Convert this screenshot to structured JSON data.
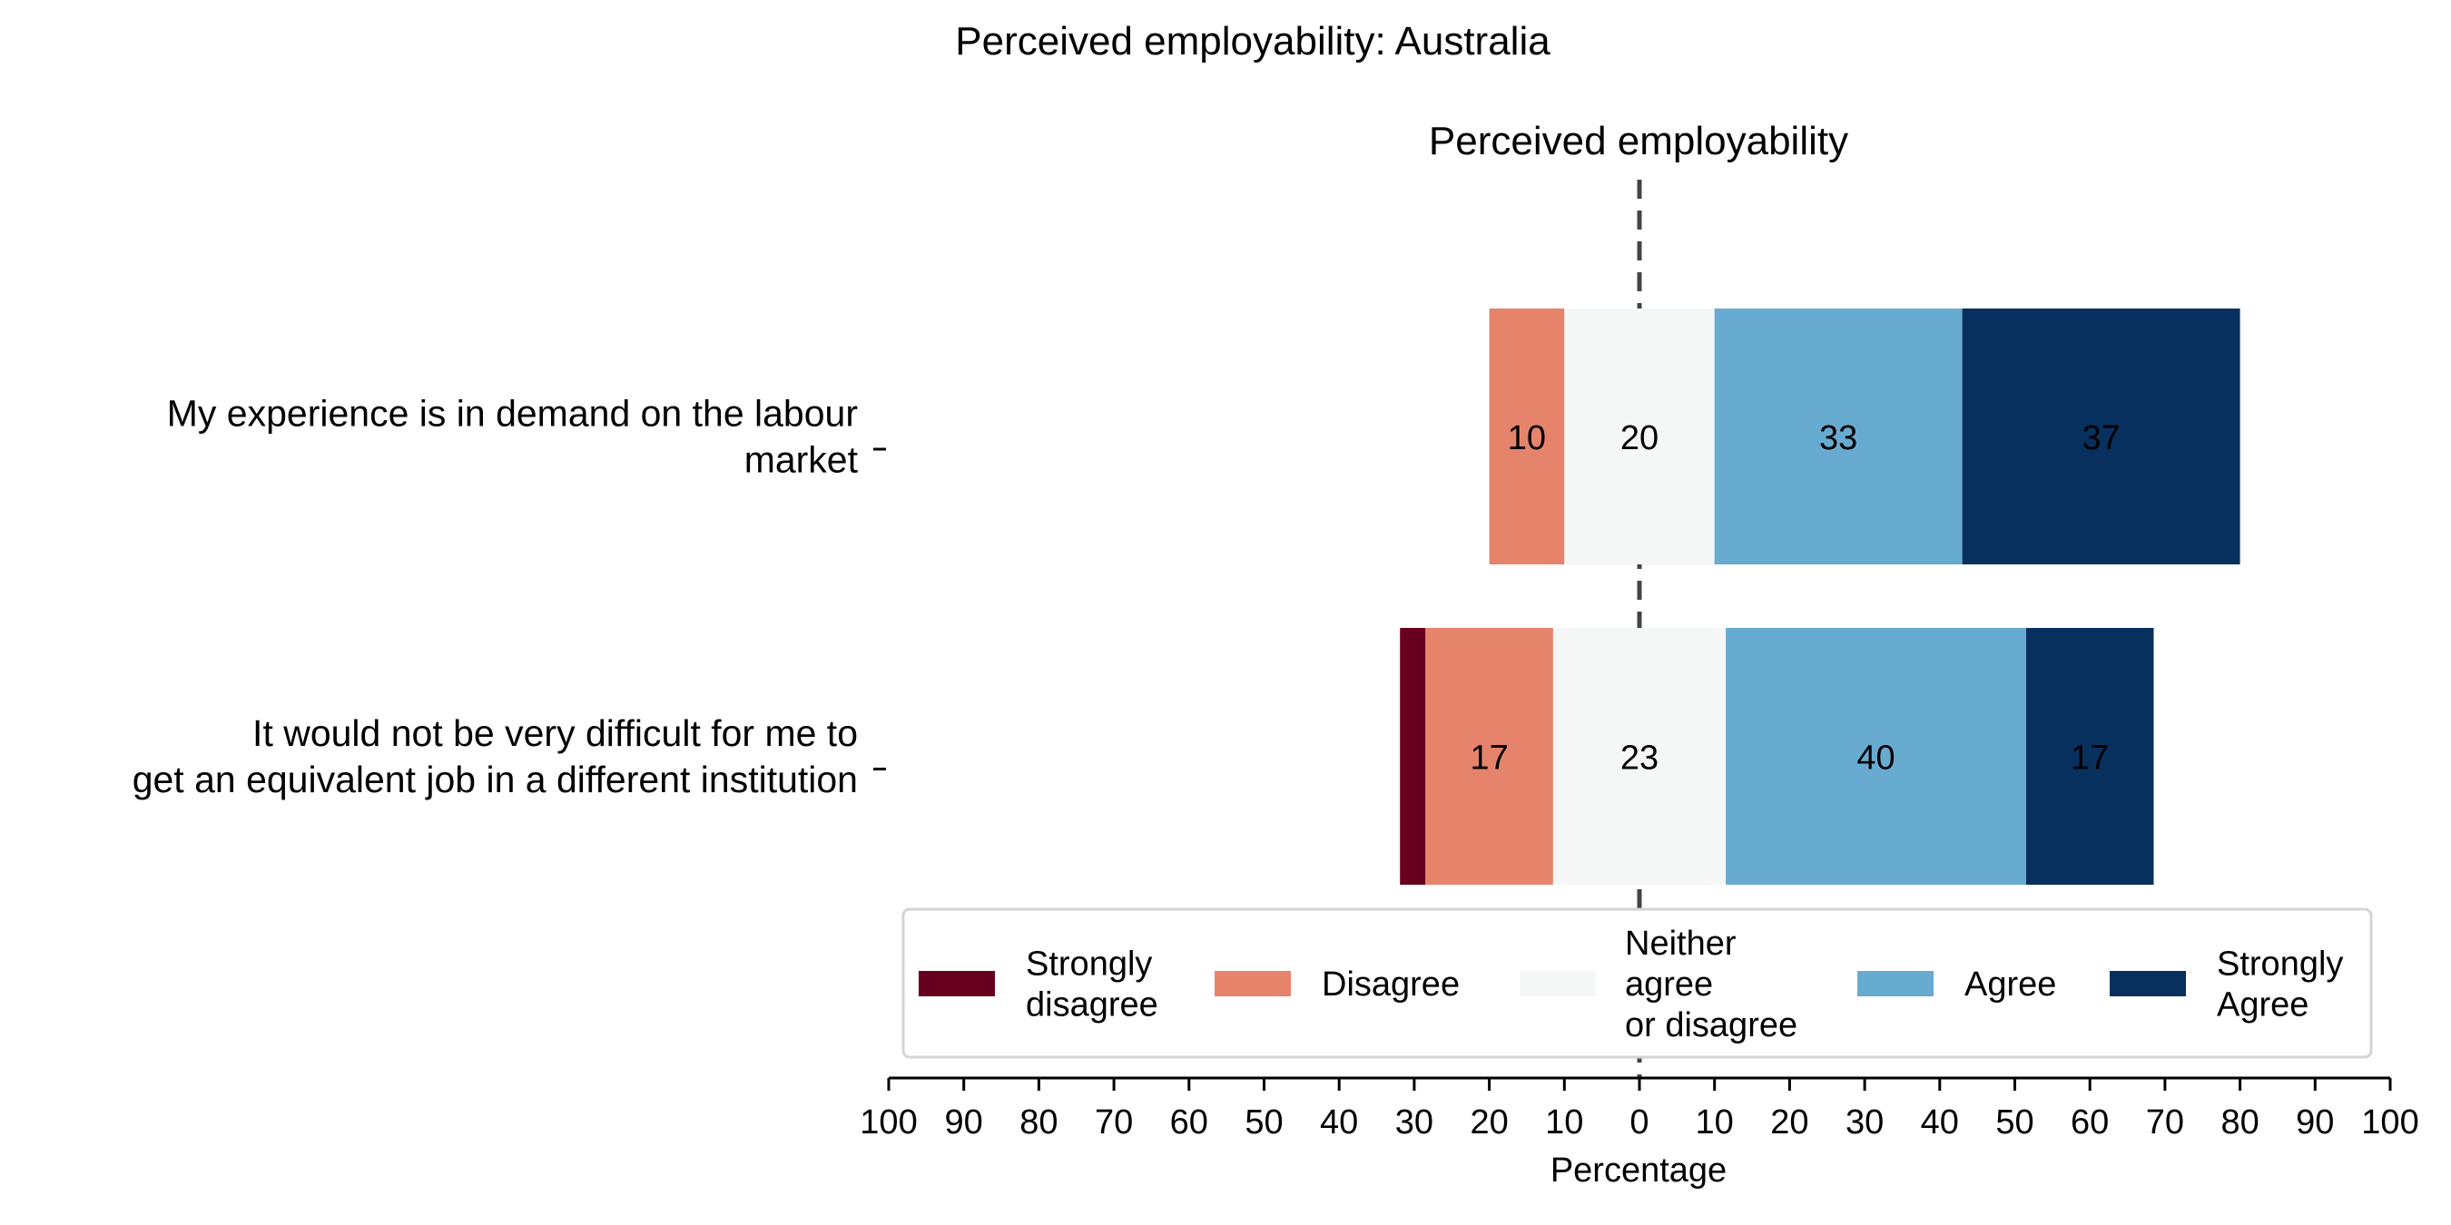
{
  "chart_data": {
    "type": "bar",
    "orientation": "horizontal-diverging",
    "title": "Perceived employability: Australia",
    "subtitle": "Perceived employability",
    "xlabel": "Percentage",
    "xlim": [
      -100,
      100
    ],
    "xticks": [
      -100,
      -90,
      -80,
      -70,
      -60,
      -50,
      -40,
      -30,
      -20,
      -10,
      0,
      10,
      20,
      30,
      40,
      50,
      60,
      70,
      80,
      90,
      100
    ],
    "xtick_labels": [
      "100",
      "90",
      "80",
      "70",
      "60",
      "50",
      "40",
      "30",
      "20",
      "10",
      "0",
      "10",
      "20",
      "30",
      "40",
      "50",
      "60",
      "70",
      "80",
      "90",
      "100"
    ],
    "center_line": "dashed at 0",
    "categories": [
      "My experience is in demand on the labour market",
      "It would not be very difficult for me to get an equivalent job in a different institution"
    ],
    "category_lines": [
      [
        "My experience is in demand on the labour",
        "market"
      ],
      [
        "It would not be very difficult for me to",
        "get an equivalent job in a different institution"
      ]
    ],
    "series": [
      {
        "name": "Strongly disagree",
        "legend_lines": [
          "Strongly",
          "disagree"
        ],
        "color": "#67001f",
        "values": [
          0,
          3.4
        ],
        "labels": [
          "",
          ""
        ]
      },
      {
        "name": "Disagree",
        "legend_lines": [
          "Disagree"
        ],
        "color": "#e6846b",
        "values": [
          10,
          17
        ],
        "labels": [
          "10",
          "17"
        ]
      },
      {
        "name": "Neither agree or disagree",
        "legend_lines": [
          "Neither",
          "agree",
          "or disagree"
        ],
        "color": "#f5f6f6",
        "values": [
          20,
          23
        ],
        "labels": [
          "20",
          "23"
        ]
      },
      {
        "name": "Agree",
        "legend_lines": [
          "Agree"
        ],
        "color": "#68abd1",
        "values": [
          33,
          40
        ],
        "labels": [
          "33",
          "40"
        ]
      },
      {
        "name": "Strongly Agree",
        "legend_lines": [
          "Strongly",
          "Agree"
        ],
        "color": "#08305f",
        "values": [
          37,
          17
        ],
        "labels": [
          "37",
          "17"
        ]
      }
    ],
    "legend": {
      "placement": "bottom-center",
      "columns": 5
    }
  }
}
